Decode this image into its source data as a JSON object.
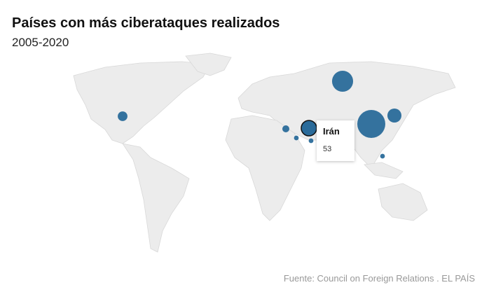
{
  "chart_data": {
    "type": "bubble",
    "title": "Países con más ciberataques realizados",
    "subtitle": "2005-2020",
    "source": "Fuente: Council on Foreign Relations . EL PAÍS",
    "categories": [
      null,
      null,
      "Irán",
      null,
      null,
      null,
      null,
      null,
      null
    ],
    "values": [
      175,
      99,
      53,
      44,
      21,
      11,
      5,
      5,
      5
    ],
    "color": "#2a6b9a"
  }
}
